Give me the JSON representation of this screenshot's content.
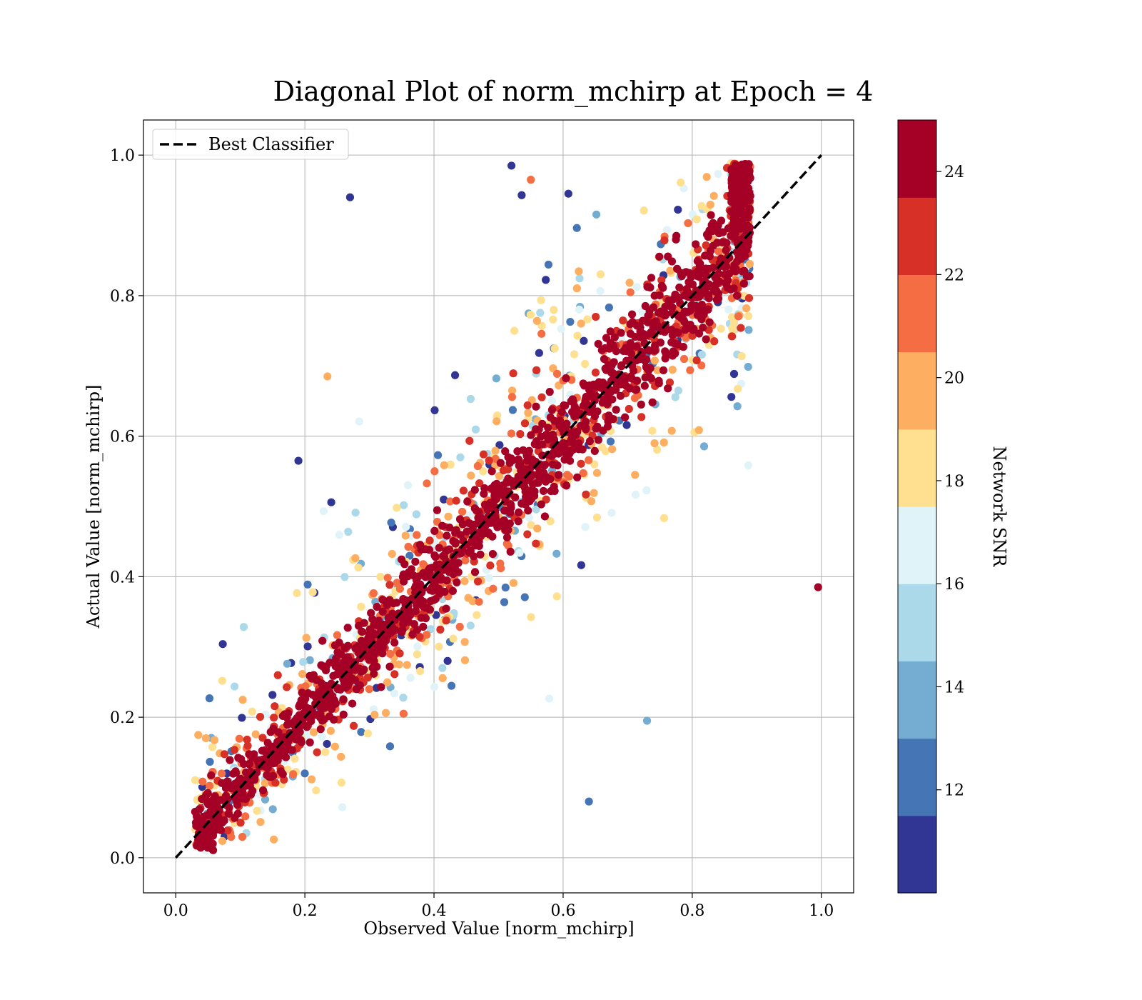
{
  "chart_data": {
    "type": "scatter",
    "title": "Diagonal Plot of norm_mchirp at Epoch = 4",
    "xlabel": "Observed Value [norm_mchirp]",
    "ylabel": "Actual Value [norm_mchirp]",
    "xlim": [
      -0.05,
      1.05
    ],
    "ylim": [
      -0.05,
      1.05
    ],
    "xticks": [
      0.0,
      0.2,
      0.4,
      0.6,
      0.8,
      1.0
    ],
    "yticks": [
      0.0,
      0.2,
      0.4,
      0.6,
      0.8,
      1.0
    ],
    "xtick_labels": [
      "0.0",
      "0.2",
      "0.4",
      "0.6",
      "0.8",
      "1.0"
    ],
    "ytick_labels": [
      "0.0",
      "0.2",
      "0.4",
      "0.6",
      "0.8",
      "1.0"
    ],
    "grid": true,
    "legend": {
      "placement": "top-left",
      "entries": [
        "Best Classifier"
      ]
    },
    "reference_line": {
      "name": "Best Classifier",
      "style": "dashed",
      "color": "#000000",
      "x": [
        0.0,
        1.0
      ],
      "y": [
        0.0,
        1.0
      ]
    },
    "colorbar": {
      "label": "Network SNR",
      "range": [
        10,
        25
      ],
      "ticks": [
        12,
        14,
        16,
        18,
        20,
        22,
        24
      ],
      "tick_labels": [
        "12",
        "14",
        "16",
        "18",
        "20",
        "22",
        "24"
      ],
      "colors": [
        "#313695",
        "#4575b4",
        "#74add1",
        "#abd9e9",
        "#e0f3f8",
        "#fee090",
        "#fdae61",
        "#f46d43",
        "#d73027",
        "#a50026"
      ]
    },
    "notable_points": [
      {
        "x": 0.995,
        "y": 0.385,
        "snr": 24
      },
      {
        "x": 0.27,
        "y": 0.94,
        "snr": 11
      },
      {
        "x": 0.19,
        "y": 0.565,
        "snr": 11
      },
      {
        "x": 0.235,
        "y": 0.685,
        "snr": 19
      },
      {
        "x": 0.52,
        "y": 0.985,
        "snr": 11
      },
      {
        "x": 0.55,
        "y": 0.965,
        "snr": 21
      },
      {
        "x": 0.64,
        "y": 0.08,
        "snr": 12
      },
      {
        "x": 0.73,
        "y": 0.195,
        "snr": 13
      }
    ],
    "scatter_description": {
      "points_approx": 2600,
      "trend": "dense band along y = x from about 0.03 to 0.88, high-SNR points concentrated near the diagonal, low-SNR points scattered widely"
    }
  }
}
